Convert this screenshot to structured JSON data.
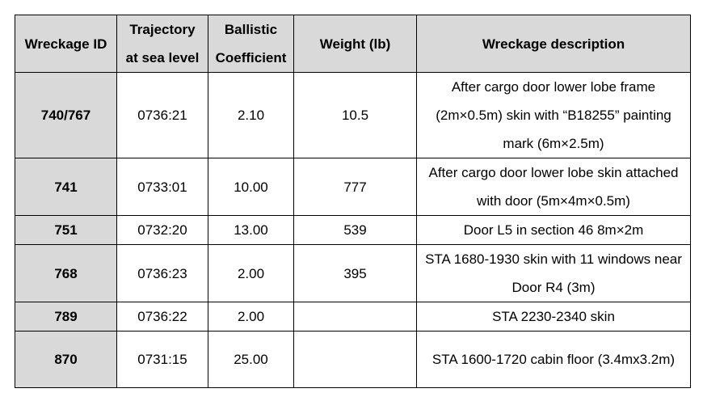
{
  "table": {
    "headers": {
      "id": "Wreckage ID",
      "trajectory_1": "Trajectory",
      "trajectory_2": "at sea level",
      "ballistic_1": "Ballistic",
      "ballistic_2": "Coefficient",
      "weight": "Weight (lb)",
      "description": "Wreckage description"
    },
    "rows": [
      {
        "id": "740/767",
        "trajectory": "0736:21",
        "coefficient": "2.10",
        "weight": "10.5",
        "description": "After cargo door lower lobe frame (2m×0.5m) skin with “B18255” painting mark (6m×2.5m)"
      },
      {
        "id": "741",
        "trajectory": "0733:01",
        "coefficient": "10.00",
        "weight": "777",
        "description": "After cargo door lower lobe skin attached with door (5m×4m×0.5m)"
      },
      {
        "id": "751",
        "trajectory": "0732:20",
        "coefficient": "13.00",
        "weight": "539",
        "description": "Door L5 in section 46 8m×2m"
      },
      {
        "id": "768",
        "trajectory": "0736:23",
        "coefficient": "2.00",
        "weight": "395",
        "description": "STA 1680-1930 skin with 11 windows near Door R4 (3m)"
      },
      {
        "id": "789",
        "trajectory": "0736:22",
        "coefficient": "2.00",
        "weight": "",
        "description": "STA 2230-2340 skin"
      },
      {
        "id": "870",
        "trajectory": "0731:15",
        "coefficient": "25.00",
        "weight": "",
        "description": "STA 1600-1720 cabin floor (3.4mx3.2m)"
      }
    ]
  }
}
